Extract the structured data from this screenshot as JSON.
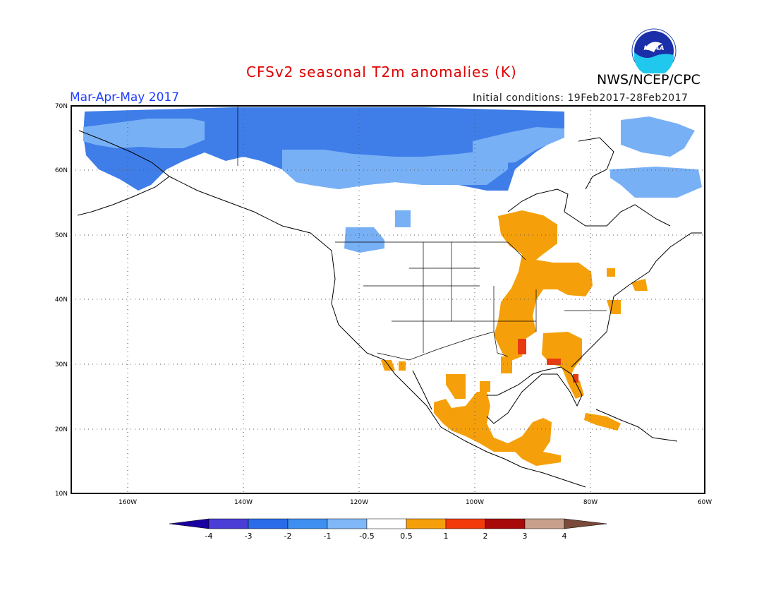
{
  "header": {
    "title": "CFSv2 seasonal T2m anomalies (K)",
    "center": "NWS/NCEP/CPC",
    "period": "Mar-Apr-May 2017",
    "initial_conditions": "Initial conditions: 19Feb2017-28Feb2017",
    "logo_text": "NOAA"
  },
  "map": {
    "lon_range": [
      -172,
      -60
    ],
    "lat_range": [
      10,
      70
    ],
    "lon_ticks": [
      "160W",
      "140W",
      "120W",
      "100W",
      "80W",
      "60W"
    ],
    "lat_ticks": [
      "70N",
      "60N",
      "50N",
      "40N",
      "30N",
      "20N",
      "10N"
    ],
    "gridlines": "dotted"
  },
  "colorbar": {
    "labels": [
      "-4",
      "-3",
      "-2",
      "-1",
      "-0.5",
      "0.5",
      "1",
      "2",
      "3",
      "4"
    ],
    "colors": [
      "#1a00a0",
      "#4a3ed6",
      "#2a6be8",
      "#3f8ff0",
      "#7fb7f7",
      "#ffffff",
      "#f5a00a",
      "#f23a0a",
      "#a80a0a",
      "#c9a08c",
      "#7a4a3a"
    ]
  },
  "legend_colors": {
    "cold_strong": "#3f7ee8",
    "cold_light": "#78b0f5",
    "warm": "#f5a00a",
    "hot": "#e83a10"
  }
}
